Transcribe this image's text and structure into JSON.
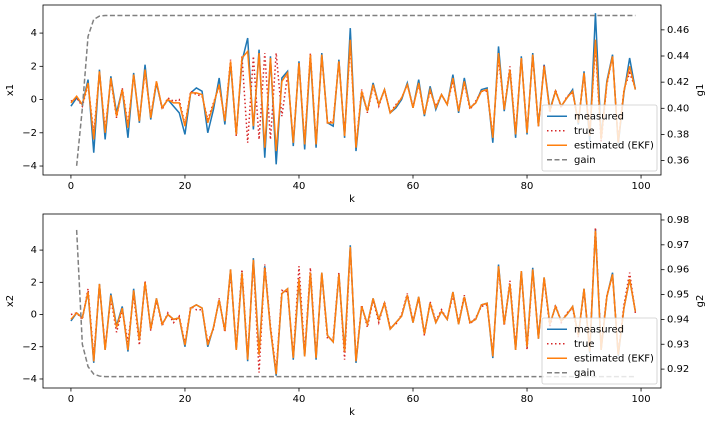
{
  "chart_data": [
    {
      "type": "line",
      "xlabel": "k",
      "ylabel": "x1",
      "y2label": "g1",
      "xlim": [
        -4.9,
        103.5
      ],
      "xticks": [
        0,
        20,
        40,
        60,
        80,
        100
      ],
      "ylim": [
        -4.54,
        5.69
      ],
      "yticks": [
        {
          "value": -4,
          "label": "−4"
        },
        {
          "value": -2,
          "label": "−2"
        },
        0,
        2,
        4
      ],
      "y2lim": [
        0.349,
        0.479
      ],
      "y2ticks": [
        0.36,
        0.38,
        {
          "value": 0.4,
          "label": "0.40"
        },
        0.42,
        0.44,
        0.46
      ],
      "legend": "lower right",
      "x": [
        0,
        1,
        2,
        3,
        4,
        5,
        6,
        7,
        8,
        9,
        10,
        11,
        12,
        13,
        14,
        15,
        16,
        17,
        18,
        19,
        20,
        21,
        22,
        23,
        24,
        25,
        26,
        27,
        28,
        29,
        30,
        31,
        32,
        33,
        34,
        35,
        36,
        37,
        38,
        39,
        40,
        41,
        42,
        43,
        44,
        45,
        46,
        47,
        48,
        49,
        50,
        51,
        52,
        53,
        54,
        55,
        56,
        57,
        58,
        59,
        60,
        61,
        62,
        63,
        64,
        65,
        66,
        67,
        68,
        69,
        70,
        71,
        72,
        73,
        74,
        75,
        76,
        77,
        78,
        79,
        80,
        81,
        82,
        83,
        84,
        85,
        86,
        87,
        88,
        89,
        90,
        91,
        92,
        93,
        94,
        95,
        96,
        97,
        98,
        99
      ],
      "series": [
        {
          "name": "measured",
          "color": "#1f77b4",
          "linestyle": "solid",
          "values": [
            -0.4,
            0.1,
            -0.3,
            1.2,
            -3.2,
            1.8,
            -2.4,
            1.4,
            -0.8,
            0.6,
            -2.3,
            1.6,
            -1.4,
            2.1,
            -1.2,
            1.0,
            -0.5,
            0.0,
            -0.4,
            -0.8,
            -2.1,
            0.4,
            0.7,
            0.5,
            -2.0,
            -0.6,
            1.3,
            -1.5,
            2.2,
            -2.1,
            2.3,
            3.7,
            -1.8,
            3.0,
            -3.5,
            2.6,
            -3.9,
            1.3,
            1.7,
            -2.8,
            2.3,
            -3.0,
            2.6,
            -2.9,
            2.8,
            -1.4,
            -1.6,
            2.4,
            -2.3,
            4.3,
            -3.1,
            0.4,
            -0.7,
            1.0,
            -0.3,
            0.6,
            -0.8,
            -0.5,
            0.0,
            1.0,
            -0.5,
            1.2,
            -1.0,
            0.8,
            -0.6,
            0.3,
            -0.3,
            1.5,
            -0.8,
            1.3,
            -0.5,
            -0.2,
            0.6,
            0.7,
            -2.6,
            3.2,
            -0.7,
            1.8,
            -2.3,
            2.6,
            -2.1,
            2.8,
            -1.6,
            2.1,
            -0.6,
            0.5,
            -0.4,
            0.1,
            0.6,
            -1.5,
            1.7,
            -2.5,
            5.2,
            -2.3,
            1.1,
            2.7,
            -2.7,
            0.4,
            2.5,
            0.6
          ]
        },
        {
          "name": "true",
          "color": "#d62728",
          "linestyle": "dotted",
          "values": [
            -0.1,
            0.1,
            -0.4,
            0.9,
            -2.0,
            1.6,
            -1.8,
            1.2,
            -1.1,
            0.7,
            -1.5,
            1.4,
            -1.2,
            1.7,
            -1.0,
            1.1,
            -0.6,
            0.1,
            -0.1,
            0.0,
            -1.5,
            0.5,
            0.3,
            0.2,
            -1.2,
            -0.2,
            0.8,
            -1.2,
            2.4,
            -2.2,
            2.6,
            -2.6,
            2.6,
            -2.4,
            2.8,
            -2.4,
            2.8,
            -1.0,
            1.5,
            -2.5,
            2.2,
            -2.6,
            2.8,
            -2.6,
            2.6,
            -1.4,
            -1.3,
            2.3,
            -2.1,
            3.3,
            -2.8,
            0.6,
            -0.8,
            0.8,
            -0.4,
            0.6,
            -0.8,
            -0.3,
            0.1,
            0.9,
            -0.4,
            0.9,
            -0.9,
            0.5,
            -0.4,
            0.3,
            -0.3,
            1.1,
            -0.6,
            1.0,
            -0.6,
            -0.1,
            0.5,
            0.5,
            -2.2,
            2.5,
            -0.6,
            2.0,
            -2.0,
            2.5,
            -1.9,
            2.6,
            -1.6,
            2.1,
            -0.8,
            0.6,
            -0.5,
            0.2,
            0.4,
            -1.3,
            1.5,
            -2.0,
            3.2,
            -2.6,
            0.9,
            2.6,
            -2.5,
            0.6,
            1.6,
            0.7
          ]
        },
        {
          "name": "estimated (EKF)",
          "color": "#ff7f0e",
          "linestyle": "solid",
          "values": [
            -0.2,
            0.2,
            -0.3,
            1.0,
            -2.4,
            1.7,
            -2.0,
            1.3,
            -1.0,
            0.6,
            -1.7,
            1.5,
            -1.3,
            1.8,
            -1.1,
            1.1,
            -0.5,
            0.0,
            -0.2,
            -0.2,
            -1.6,
            0.4,
            0.4,
            0.3,
            -1.4,
            -0.3,
            0.9,
            -1.3,
            2.3,
            -2.1,
            2.5,
            2.9,
            -1.6,
            2.8,
            -2.9,
            2.5,
            -3.1,
            1.1,
            1.6,
            -2.6,
            2.2,
            -2.7,
            2.7,
            -2.7,
            2.7,
            -1.4,
            -1.4,
            2.3,
            -2.2,
            3.6,
            -2.9,
            0.5,
            -0.7,
            0.9,
            -0.3,
            0.6,
            -0.8,
            -0.4,
            0.1,
            0.9,
            -0.5,
            1.0,
            -0.9,
            0.6,
            -0.5,
            0.3,
            -0.3,
            1.3,
            -0.7,
            1.1,
            -0.5,
            -0.2,
            0.5,
            0.6,
            -2.3,
            2.8,
            -0.6,
            1.8,
            -2.1,
            2.5,
            -2.0,
            2.7,
            -1.6,
            2.0,
            -0.7,
            0.5,
            -0.4,
            0.1,
            0.5,
            -1.4,
            1.6,
            -2.2,
            3.6,
            -2.4,
            1.0,
            2.6,
            -2.6,
            0.5,
            2.0,
            0.6
          ]
        },
        {
          "name": "gain",
          "color": "#808080",
          "linestyle": "dashed",
          "axis": "y2",
          "values": [
            null,
            0.356,
            0.4,
            0.455,
            0.468,
            0.4705,
            0.471,
            0.471,
            0.471,
            0.471,
            0.471,
            0.471,
            0.471,
            0.471,
            0.471,
            0.471,
            0.471,
            0.471,
            0.471,
            0.471,
            0.471,
            0.471,
            0.471,
            0.471,
            0.471,
            0.471,
            0.471,
            0.471,
            0.471,
            0.471,
            0.471,
            0.471,
            0.471,
            0.471,
            0.471,
            0.471,
            0.471,
            0.471,
            0.471,
            0.471,
            0.471,
            0.471,
            0.471,
            0.471,
            0.471,
            0.471,
            0.471,
            0.471,
            0.471,
            0.471,
            0.471,
            0.471,
            0.471,
            0.471,
            0.471,
            0.471,
            0.471,
            0.471,
            0.471,
            0.471,
            0.471,
            0.471,
            0.471,
            0.471,
            0.471,
            0.471,
            0.471,
            0.471,
            0.471,
            0.471,
            0.471,
            0.471,
            0.471,
            0.471,
            0.471,
            0.471,
            0.471,
            0.471,
            0.471,
            0.471,
            0.471,
            0.471,
            0.471,
            0.471,
            0.471,
            0.471,
            0.471,
            0.471,
            0.471,
            0.471,
            0.471,
            0.471,
            0.471,
            0.471,
            0.471,
            0.471,
            0.471,
            0.471,
            0.471,
            0.471
          ]
        }
      ]
    },
    {
      "type": "line",
      "xlabel": "k",
      "ylabel": "x2",
      "y2label": "g2",
      "xlim": [
        -4.9,
        103.5
      ],
      "xticks": [
        0,
        20,
        40,
        60,
        80,
        100
      ],
      "ylim": [
        -4.56,
        6.24
      ],
      "yticks": [
        {
          "value": -4,
          "label": "−4"
        },
        {
          "value": -2,
          "label": "−2"
        },
        0,
        2,
        4
      ],
      "y2lim": [
        0.9124,
        0.9824
      ],
      "y2ticks": [
        0.92,
        0.93,
        0.94,
        0.95,
        0.96,
        0.97,
        0.98
      ],
      "legend": "lower right",
      "x": [
        0,
        1,
        2,
        3,
        4,
        5,
        6,
        7,
        8,
        9,
        10,
        11,
        12,
        13,
        14,
        15,
        16,
        17,
        18,
        19,
        20,
        21,
        22,
        23,
        24,
        25,
        26,
        27,
        28,
        29,
        30,
        31,
        32,
        33,
        34,
        35,
        36,
        37,
        38,
        39,
        40,
        41,
        42,
        43,
        44,
        45,
        46,
        47,
        48,
        49,
        50,
        51,
        52,
        53,
        54,
        55,
        56,
        57,
        58,
        59,
        60,
        61,
        62,
        63,
        64,
        65,
        66,
        67,
        68,
        69,
        70,
        71,
        72,
        73,
        74,
        75,
        76,
        77,
        78,
        79,
        80,
        81,
        82,
        83,
        84,
        85,
        86,
        87,
        88,
        89,
        90,
        91,
        92,
        93,
        94,
        95,
        96,
        97,
        98,
        99
      ],
      "series": [
        {
          "name": "measured",
          "color": "#1f77b4",
          "linestyle": "solid",
          "values": [
            -0.4,
            0.1,
            -0.2,
            1.4,
            -3.0,
            1.9,
            -2.2,
            1.3,
            -0.7,
            0.5,
            -2.3,
            1.6,
            -1.6,
            2.0,
            -0.9,
            1.0,
            -0.6,
            0.0,
            -0.3,
            -0.2,
            -2.0,
            0.4,
            0.6,
            0.4,
            -2.0,
            -0.8,
            0.9,
            -1.0,
            2.8,
            -2.2,
            2.6,
            -2.9,
            3.5,
            -2.4,
            3.0,
            -0.9,
            -3.8,
            1.3,
            1.6,
            -2.8,
            2.1,
            -2.6,
            2.6,
            -2.8,
            2.6,
            -1.3,
            -1.7,
            2.5,
            -2.3,
            4.3,
            -3.0,
            0.5,
            -0.6,
            1.0,
            -0.3,
            0.7,
            -0.9,
            -0.5,
            -0.1,
            1.2,
            -0.5,
            1.1,
            -1.2,
            0.7,
            -0.5,
            0.2,
            -0.3,
            1.4,
            -0.6,
            1.1,
            -0.5,
            -0.3,
            0.6,
            0.7,
            -2.7,
            3.1,
            -0.6,
            1.9,
            -2.2,
            2.7,
            -2.0,
            2.9,
            -1.5,
            2.3,
            -0.6,
            0.5,
            -0.4,
            0.0,
            0.5,
            -1.3,
            1.6,
            -2.4,
            5.3,
            -2.2,
            1.1,
            2.6,
            -2.6,
            0.4,
            2.2,
            0.2
          ]
        },
        {
          "name": "true",
          "color": "#d62728",
          "linestyle": "dotted",
          "values": [
            0.0,
            0.1,
            -0.3,
            1.6,
            -2.6,
            1.8,
            -2.0,
            1.0,
            -1.1,
            0.3,
            -1.7,
            1.2,
            -1.9,
            2.1,
            -1.0,
            0.9,
            -0.7,
            0.1,
            -0.5,
            -0.1,
            -1.8,
            0.5,
            0.3,
            0.3,
            -1.7,
            -0.9,
            1.0,
            -1.1,
            2.6,
            -2.0,
            2.8,
            -2.6,
            3.3,
            -3.6,
            3.1,
            -0.7,
            -3.5,
            1.5,
            1.4,
            -2.6,
            3.0,
            -2.4,
            2.9,
            -2.6,
            2.5,
            -1.5,
            -1.5,
            2.6,
            -2.8,
            4.1,
            -2.8,
            0.6,
            -0.8,
            0.9,
            -0.5,
            0.8,
            -0.8,
            -0.6,
            0.0,
            1.3,
            -0.4,
            1.0,
            -1.3,
            0.8,
            -0.4,
            0.3,
            -0.3,
            1.2,
            -0.5,
            1.2,
            -0.6,
            -0.2,
            0.5,
            0.6,
            -2.4,
            2.8,
            -0.7,
            2.1,
            -2.0,
            2.6,
            -2.2,
            2.7,
            -1.4,
            2.2,
            -0.8,
            0.6,
            -0.5,
            0.1,
            0.4,
            -1.4,
            1.5,
            -2.2,
            5.4,
            -2.0,
            1.2,
            2.4,
            -2.4,
            0.6,
            2.6,
            0.1
          ]
        },
        {
          "name": "estimated (EKF)",
          "color": "#ff7f0e",
          "linestyle": "solid",
          "values": [
            -0.3,
            0.1,
            -0.2,
            1.4,
            -2.9,
            1.9,
            -2.2,
            1.2,
            -0.8,
            0.4,
            -2.2,
            1.5,
            -1.6,
            2.0,
            -0.9,
            1.0,
            -0.6,
            0.0,
            -0.3,
            -0.2,
            -1.9,
            0.4,
            0.6,
            0.4,
            -1.9,
            -0.8,
            0.9,
            -1.0,
            2.8,
            -2.2,
            2.6,
            -2.8,
            3.4,
            -2.5,
            2.9,
            -0.9,
            -3.7,
            1.3,
            1.6,
            -2.7,
            2.2,
            -2.6,
            2.6,
            -2.7,
            2.6,
            -1.3,
            -1.7,
            2.5,
            -2.3,
            4.2,
            -2.9,
            0.5,
            -0.6,
            1.0,
            -0.3,
            0.7,
            -0.9,
            -0.5,
            -0.1,
            1.2,
            -0.5,
            1.1,
            -1.2,
            0.7,
            -0.5,
            0.2,
            -0.3,
            1.4,
            -0.6,
            1.1,
            -0.5,
            -0.3,
            0.6,
            0.7,
            -2.6,
            3.0,
            -0.6,
            1.9,
            -2.2,
            2.7,
            -2.0,
            2.8,
            -1.5,
            2.3,
            -0.6,
            0.5,
            -0.4,
            0.0,
            0.5,
            -1.3,
            1.6,
            -2.3,
            5.2,
            -2.2,
            1.1,
            2.5,
            -2.5,
            0.4,
            2.2,
            0.2
          ]
        },
        {
          "name": "gain",
          "color": "#808080",
          "linestyle": "dashed",
          "axis": "y2",
          "values": [
            null,
            0.976,
            0.93,
            0.921,
            0.918,
            0.9172,
            0.917,
            0.917,
            0.917,
            0.917,
            0.917,
            0.917,
            0.917,
            0.917,
            0.917,
            0.917,
            0.917,
            0.917,
            0.917,
            0.917,
            0.917,
            0.917,
            0.917,
            0.917,
            0.917,
            0.917,
            0.917,
            0.917,
            0.917,
            0.917,
            0.917,
            0.917,
            0.917,
            0.917,
            0.917,
            0.917,
            0.917,
            0.917,
            0.917,
            0.917,
            0.917,
            0.917,
            0.917,
            0.917,
            0.917,
            0.917,
            0.917,
            0.917,
            0.917,
            0.917,
            0.917,
            0.917,
            0.917,
            0.917,
            0.917,
            0.917,
            0.917,
            0.917,
            0.917,
            0.917,
            0.917,
            0.917,
            0.917,
            0.917,
            0.917,
            0.917,
            0.917,
            0.917,
            0.917,
            0.917,
            0.917,
            0.917,
            0.917,
            0.917,
            0.917,
            0.917,
            0.917,
            0.917,
            0.917,
            0.917,
            0.917,
            0.917,
            0.917,
            0.917,
            0.917,
            0.917,
            0.917,
            0.917,
            0.917,
            0.917,
            0.917,
            0.917,
            0.917,
            0.917,
            0.917,
            0.917,
            0.917,
            0.917,
            0.917,
            0.917
          ]
        }
      ]
    }
  ]
}
